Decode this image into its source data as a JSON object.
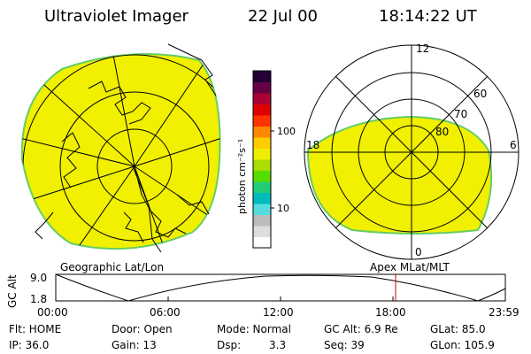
{
  "header": {
    "instrument": "Ultraviolet Imager",
    "date": "22 Jul 00",
    "time": "18:14:22 UT"
  },
  "left_panel": {
    "caption": "Geographic Lat/Lon"
  },
  "right_panel": {
    "caption": "Apex MLat/MLT",
    "mlt_labels": {
      "top": "12",
      "left": "18",
      "right": "6",
      "bottom": "0"
    },
    "lat_labels": [
      "60",
      "70",
      "80"
    ]
  },
  "colorbar": {
    "label": "photon cm⁻²s⁻¹",
    "ticks": [
      "100",
      "10"
    ],
    "colors": [
      "#ffffff",
      "#dddddd",
      "#bbbbbb",
      "#55dddd",
      "#00bbbb",
      "#22cc77",
      "#55dd00",
      "#aadd00",
      "#eeee00",
      "#ffcc00",
      "#ff8800",
      "#ff3300",
      "#dd0000",
      "#aa0033",
      "#660044",
      "#220033"
    ]
  },
  "altitude_plot": {
    "ylabel": "GC Alt",
    "y_ticks": [
      "9.0",
      "1.8"
    ],
    "x_ticks": [
      "00:00",
      "06:00",
      "12:00",
      "18:00",
      "23:59"
    ],
    "current_marker_color": "#cc0000"
  },
  "info": {
    "flt": "Flt: HOME",
    "door": "Door: Open",
    "mode": "Mode: Normal",
    "gc_alt": "GC Alt: 6.9 Re",
    "glat": "GLat: 85.0",
    "ip": "IP: 36.0",
    "gain": "Gain: 13",
    "dsp_label": "Dsp:",
    "dsp_value": "3.3",
    "seq": "Seq: 39",
    "glon": "GLon: 105.9"
  },
  "colors": {
    "aurora_fill": "#f0f000",
    "aurora_edge": "#66cc66"
  }
}
